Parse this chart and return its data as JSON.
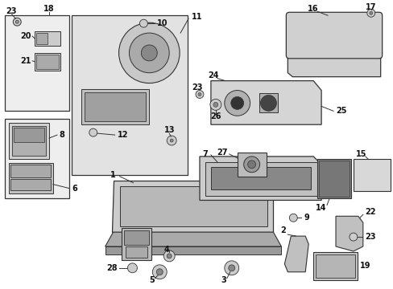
{
  "bg_color": "#ffffff",
  "line_color": "#333333",
  "fill_color": "#e8e8e8",
  "title": "",
  "figsize": [
    4.89,
    3.6
  ],
  "dpi": 100
}
